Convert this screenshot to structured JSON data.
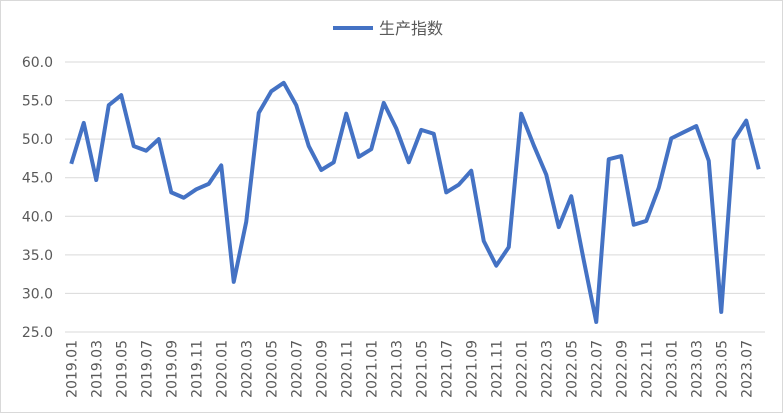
{
  "chart_data": {
    "type": "line",
    "categories": [
      "2019.01",
      null,
      "2019.03",
      null,
      "2019.05",
      null,
      "2019.07",
      null,
      "2019.09",
      null,
      "2019.11",
      null,
      "2020.01",
      null,
      "2020.03",
      null,
      "2020.05",
      null,
      "2020.07",
      null,
      "2020.09",
      null,
      "2020.11",
      null,
      "2021.01",
      null,
      "2021.03",
      null,
      "2021.05",
      null,
      "2021.07",
      null,
      "2021.09",
      null,
      "2021.11",
      null,
      "2022.01",
      null,
      "2022.03",
      null,
      "2022.05",
      null,
      "2022.07",
      null,
      "2022.09",
      null,
      "2022.11",
      null,
      "2023.01",
      null,
      "2023.03",
      null,
      "2023.05",
      null,
      "2023.07",
      null
    ],
    "series": [
      {
        "name": "生产指数",
        "color": "#4472c4",
        "values": [
          46.8,
          52.1,
          44.7,
          54.4,
          55.7,
          49.1,
          48.5,
          50.0,
          43.1,
          42.4,
          43.5,
          44.2,
          46.6,
          31.5,
          39.3,
          53.4,
          56.2,
          57.3,
          54.4,
          49.1,
          46.0,
          47.0,
          53.3,
          47.7,
          48.7,
          54.7,
          51.4,
          47.0,
          51.2,
          50.7,
          43.1,
          44.1,
          45.9,
          36.8,
          33.6,
          36.0,
          53.3,
          49.2,
          45.4,
          38.6,
          42.6,
          34.3,
          26.3,
          47.4,
          47.8,
          38.9,
          39.4,
          43.7,
          50.1,
          50.9,
          51.7,
          47.2,
          27.6,
          49.9,
          52.4,
          46.1
        ]
      }
    ],
    "ylim": [
      25,
      60
    ],
    "yticks": [
      {
        "value": 25,
        "label": "25.0"
      },
      {
        "value": 30,
        "label": "30.0"
      },
      {
        "value": 35,
        "label": "35.0"
      },
      {
        "value": 40,
        "label": "40.0"
      },
      {
        "value": 45,
        "label": "45.0"
      },
      {
        "value": 50,
        "label": "50.0"
      },
      {
        "value": 55,
        "label": "55.0"
      },
      {
        "value": 60,
        "label": "60.0"
      }
    ],
    "grid": true,
    "legend": "top"
  }
}
